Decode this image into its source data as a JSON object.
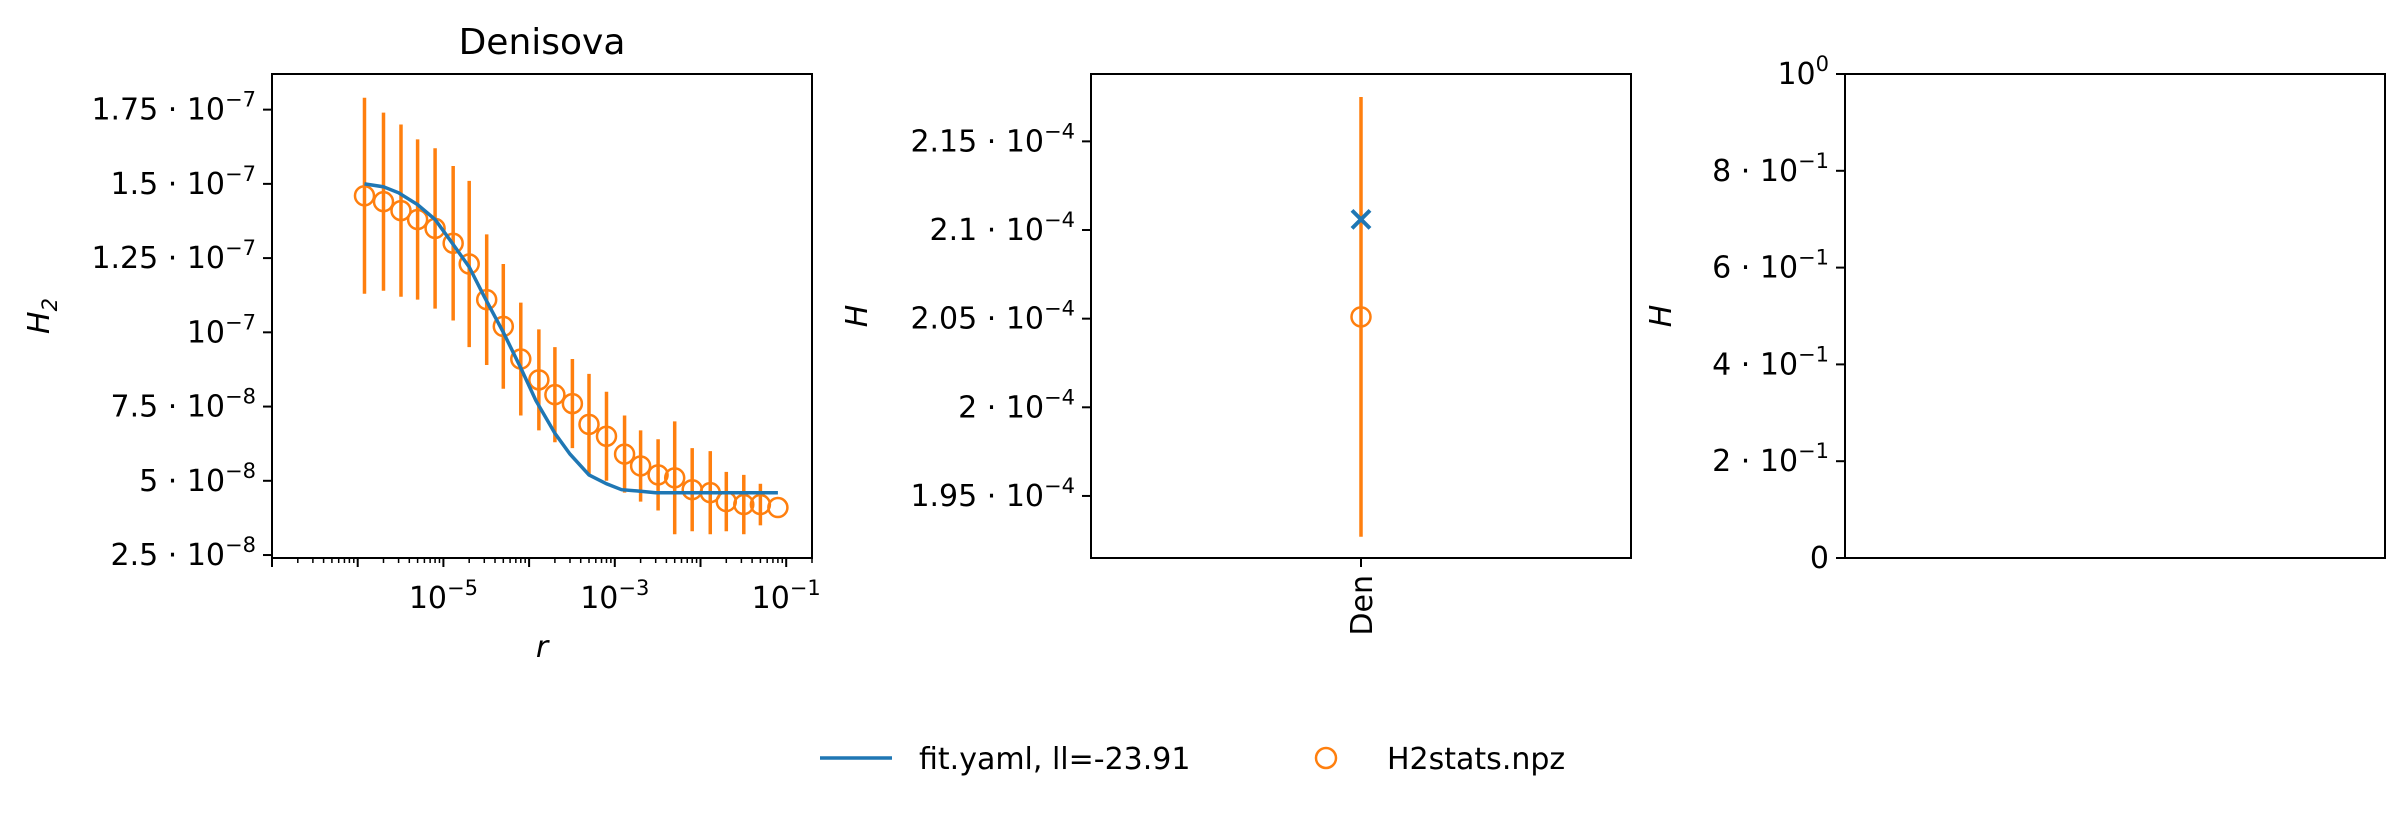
{
  "chart_data": [
    {
      "type": "line",
      "title": "Denisova",
      "xlabel": "r",
      "ylabel": "H2",
      "ylabel_main": "H",
      "ylabel_sub": "2",
      "xscale": "log",
      "xlim": [
        1e-07,
        0.2
      ],
      "ylim": [
        2.4e-08,
        1.87e-07
      ],
      "xticks": [
        {
          "value": 1e-05,
          "base": "10",
          "exp": "−5"
        },
        {
          "value": 0.001,
          "base": "10",
          "exp": "−3"
        },
        {
          "value": 0.1,
          "base": "10",
          "exp": "−1"
        }
      ],
      "yticks": [
        {
          "value": 2.5e-08,
          "mant": "2.5",
          "exp": "−8"
        },
        {
          "value": 5e-08,
          "mant": "5",
          "exp": "−8"
        },
        {
          "value": 7.5e-08,
          "mant": "7.5",
          "exp": "−8"
        },
        {
          "value": 1e-07,
          "mant": "",
          "exp": "−7"
        },
        {
          "value": 1.25e-07,
          "mant": "1.25",
          "exp": "−7"
        },
        {
          "value": 1.5e-07,
          "mant": "1.5",
          "exp": "−7"
        },
        {
          "value": 1.75e-07,
          "mant": "1.75",
          "exp": "−7"
        }
      ],
      "grid": false,
      "series": [
        {
          "name": "fit.yaml, ll=-23.91",
          "kind": "line",
          "color": "#1f77b4",
          "x": [
            1.2e-06,
            2e-06,
            3e-06,
            5e-06,
            8e-06,
            1.2e-05,
            2e-05,
            3e-05,
            5e-05,
            8e-05,
            0.00012,
            0.0002,
            0.0003,
            0.0005,
            0.0008,
            0.0012,
            0.002,
            0.003,
            0.005,
            0.008,
            0.012,
            0.02,
            0.03,
            0.05,
            0.08
          ],
          "y": [
            1.5e-07,
            1.49e-07,
            1.47e-07,
            1.43e-07,
            1.38e-07,
            1.31e-07,
            1.22e-07,
            1.12e-07,
            1e-07,
            8.8e-08,
            7.7e-08,
            6.6e-08,
            5.9e-08,
            5.2e-08,
            4.9e-08,
            4.7e-08,
            4.65e-08,
            4.6e-08,
            4.6e-08,
            4.6e-08,
            4.6e-08,
            4.6e-08,
            4.6e-08,
            4.6e-08,
            4.6e-08
          ]
        },
        {
          "name": "H2stats.npz",
          "kind": "errorbar",
          "color": "#ff7f0e",
          "x": [
            1.2e-06,
            2e-06,
            3.2e-06,
            5e-06,
            8e-06,
            1.3e-05,
            2e-05,
            3.2e-05,
            5e-05,
            8e-05,
            0.00013,
            0.0002,
            0.00032,
            0.0005,
            0.0008,
            0.0013,
            0.002,
            0.0032,
            0.005,
            0.008,
            0.013,
            0.02,
            0.032,
            0.05,
            0.08
          ],
          "y": [
            1.46e-07,
            1.44e-07,
            1.41e-07,
            1.38e-07,
            1.35e-07,
            1.3e-07,
            1.23e-07,
            1.11e-07,
            1.02e-07,
            9.1e-08,
            8.4e-08,
            7.9e-08,
            7.6e-08,
            6.9e-08,
            6.5e-08,
            5.9e-08,
            5.5e-08,
            5.2e-08,
            5.1e-08,
            4.7e-08,
            4.6e-08,
            4.3e-08,
            4.2e-08,
            4.2e-08,
            4.1e-08
          ],
          "err": [
            3.3e-08,
            3e-08,
            2.9e-08,
            2.7e-08,
            2.7e-08,
            2.6e-08,
            2.8e-08,
            2.2e-08,
            2.1e-08,
            1.9e-08,
            1.7e-08,
            1.6e-08,
            1.5e-08,
            1.7e-08,
            1.5e-08,
            1.3e-08,
            1.2e-08,
            1.2e-08,
            1.9e-08,
            1.4e-08,
            1.4e-08,
            1e-08,
            1e-08,
            7e-09,
            0
          ]
        }
      ]
    },
    {
      "type": "scatter",
      "title": "",
      "xlabel": "",
      "ylabel": "H",
      "categories": [
        "Den"
      ],
      "ylim": [
        0.0001915,
        0.0002188
      ],
      "yticks": [
        {
          "value": 0.000195,
          "mant": "1.95",
          "exp": "−4"
        },
        {
          "value": 0.0002,
          "mant": "2",
          "exp": "−4"
        },
        {
          "value": 0.000205,
          "mant": "2.05",
          "exp": "−4"
        },
        {
          "value": 0.00021,
          "mant": "2.1",
          "exp": "−4"
        },
        {
          "value": 0.000215,
          "mant": "2.15",
          "exp": "−4"
        }
      ],
      "series": [
        {
          "name": "fit.yaml, ll=-23.91",
          "marker": "x",
          "color": "#1f77b4",
          "values": [
            0.0002106
          ]
        },
        {
          "name": "H2stats.npz",
          "marker": "o",
          "color": "#ff7f0e",
          "values": [
            0.0002051
          ],
          "err": [
            1.24e-05
          ]
        }
      ]
    },
    {
      "type": "scatter",
      "title": "",
      "xlabel": "",
      "ylabel": "H",
      "ylim": [
        0,
        1
      ],
      "yticks": [
        {
          "value": 0,
          "mant": "0",
          "exp": "",
          "base": ""
        },
        {
          "value": 0.2,
          "mant": "2",
          "exp": "−1"
        },
        {
          "value": 0.4,
          "mant": "4",
          "exp": "−1"
        },
        {
          "value": 0.6,
          "mant": "6",
          "exp": "−1"
        },
        {
          "value": 0.8,
          "mant": "8",
          "exp": "−1"
        },
        {
          "value": 1,
          "mant": "",
          "exp": "0"
        }
      ],
      "series": []
    }
  ],
  "legend": {
    "placement": "bottom-center",
    "entries": [
      {
        "label": "fit.yaml, ll=-23.91",
        "marker": "line",
        "color": "#1f77b4"
      },
      {
        "label": "H2stats.npz",
        "marker": "circle",
        "color": "#ff7f0e"
      }
    ]
  }
}
